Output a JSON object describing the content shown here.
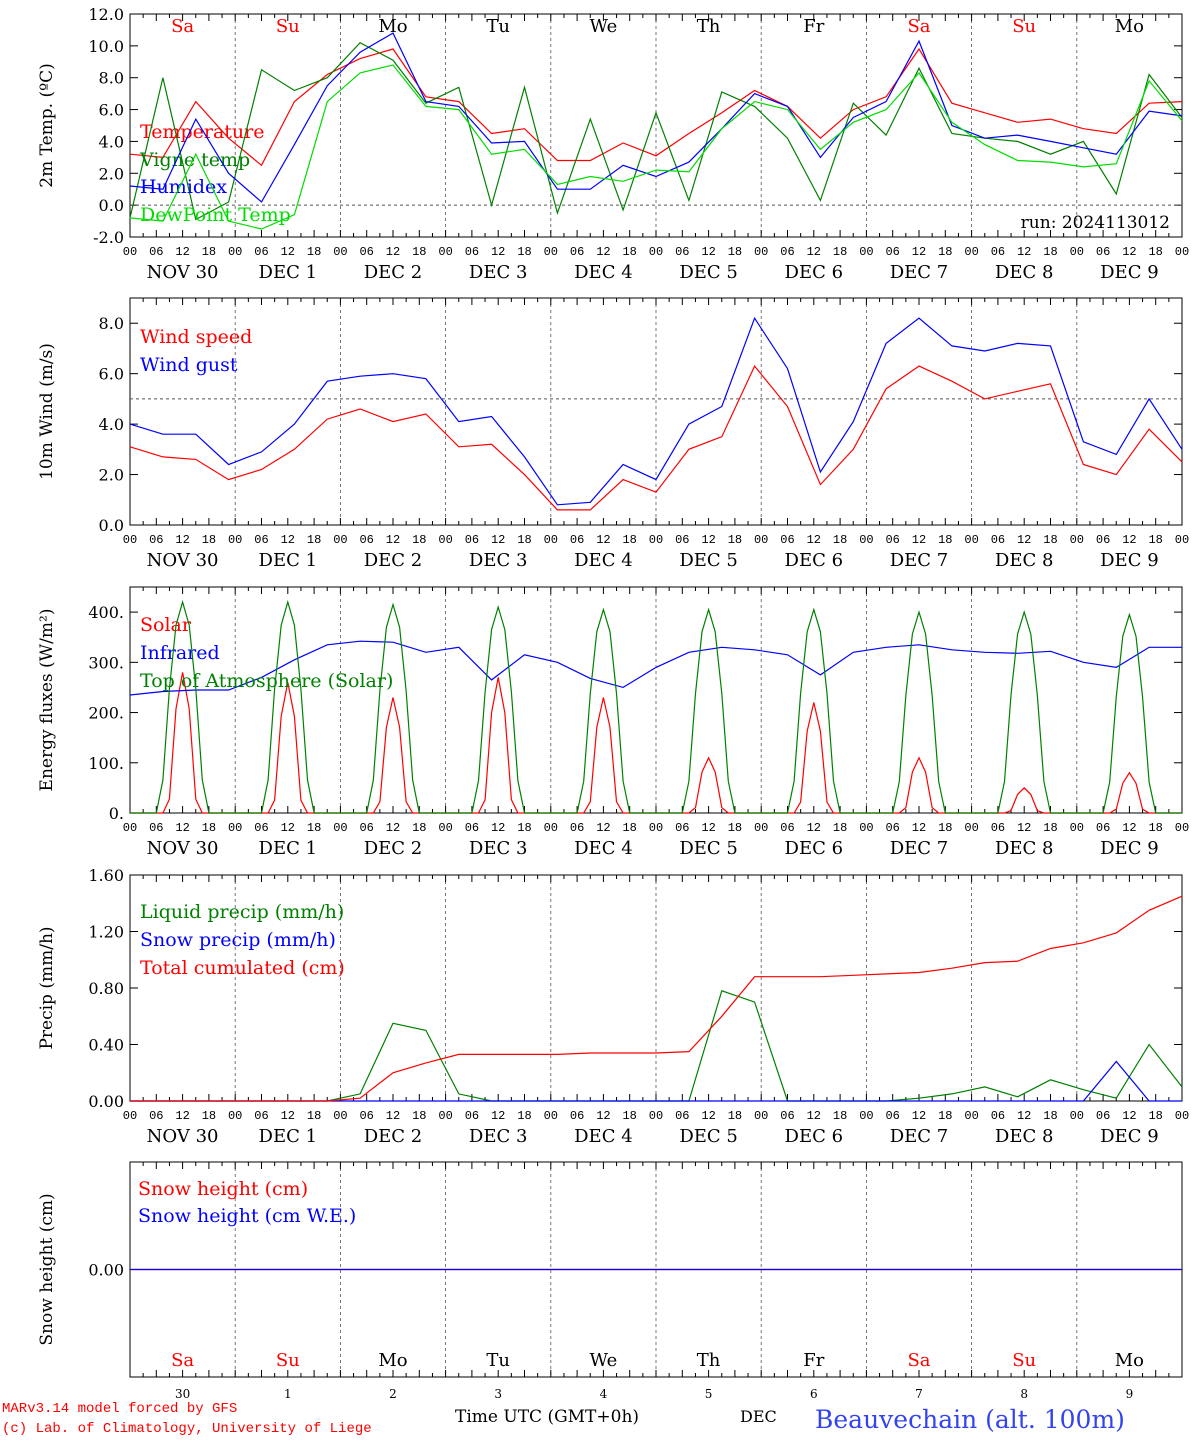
{
  "colors": {
    "red": "#ff0000",
    "green": "#008000",
    "blue": "#0000ff",
    "lime": "#00dd00",
    "black": "#000000",
    "grid": "#555555"
  },
  "days": {
    "names": [
      "Sa",
      "Su",
      "Mo",
      "Tu",
      "We",
      "Th",
      "Fr",
      "Sa",
      "Su",
      "Mo"
    ],
    "weekend_flags": [
      true,
      true,
      false,
      false,
      false,
      false,
      false,
      true,
      true,
      false
    ],
    "date_labels": [
      "NOV 30",
      "DEC  1",
      "DEC  2",
      "DEC  3",
      "DEC  4",
      "DEC  5",
      "DEC  6",
      "DEC  7",
      "DEC  8",
      "DEC  9"
    ],
    "hour_ticks": [
      "00",
      "06",
      "12",
      "18"
    ],
    "final_tick": "00",
    "day_numbers": [
      "30",
      "1",
      "2",
      "3",
      "4",
      "5",
      "6",
      "7",
      "8",
      "9"
    ]
  },
  "footer": {
    "model": "MARv3.14 model forced by GFS",
    "lab": "(c) Lab. of Climatology, University of Liege",
    "time_label": "Time UTC (GMT+0h)",
    "month": "DEC",
    "station": "Beauvechain (alt. 100m)"
  },
  "chart_data": [
    {
      "id": "temperature",
      "type": "line",
      "ylabel": "2m Temp. (ºC)",
      "ylim": [
        -2,
        12
      ],
      "yticks": [
        "-2.0",
        "0.0",
        "2.0",
        "4.0",
        "6.0",
        "8.0",
        "10.0",
        "12.0"
      ],
      "reference_line": 0,
      "annotation": "run: 2024113012",
      "x_hours": [
        0,
        6,
        12,
        18,
        24,
        30,
        36,
        42,
        48,
        54,
        60,
        66,
        72,
        78,
        84,
        90,
        96,
        102,
        108,
        114,
        120,
        126,
        132,
        138,
        144,
        150,
        156,
        162,
        168,
        174,
        180,
        186,
        192,
        198,
        204,
        210,
        216,
        222,
        228,
        234,
        240
      ],
      "series": [
        {
          "name": "Temperature",
          "color": "red",
          "values": [
            3.2,
            3.0,
            6.5,
            4.2,
            2.5,
            6.5,
            8.2,
            9.2,
            9.8,
            6.8,
            6.5,
            4.5,
            4.8,
            2.8,
            2.8,
            3.9,
            3.1,
            4.5,
            5.8,
            7.2,
            6.2,
            4.2,
            6.0,
            6.8,
            9.8,
            6.4,
            5.8,
            5.2,
            5.4,
            4.8,
            4.5,
            6.4,
            6.5
          ]
        },
        {
          "name": "Vigne temp",
          "color": "green",
          "values": [
            -0.8,
            8.0,
            -0.9,
            0.2,
            8.5,
            7.2,
            8.0,
            10.2,
            9.1,
            6.4,
            7.4,
            0.0,
            7.4,
            -0.5,
            5.4,
            -0.3,
            5.8,
            0.3,
            7.1,
            6.2,
            4.2,
            0.3,
            6.4,
            4.4,
            8.6,
            4.5,
            4.2,
            4.0,
            3.2,
            4.0,
            0.7,
            8.2,
            5.5
          ]
        },
        {
          "name": "Humidex",
          "color": "blue",
          "values": [
            1.2,
            1.0,
            5.4,
            2.0,
            0.2,
            3.8,
            7.5,
            9.6,
            10.8,
            6.5,
            6.2,
            3.9,
            4.0,
            1.0,
            1.0,
            2.5,
            1.8,
            2.7,
            4.8,
            7.0,
            6.2,
            3.0,
            5.5,
            6.5,
            10.3,
            5.0,
            4.2,
            4.4,
            4.0,
            3.6,
            3.2,
            5.9,
            5.6
          ]
        },
        {
          "name": "DewPoint Temp",
          "color": "lime",
          "values": [
            -0.8,
            -1.0,
            3.2,
            -1.0,
            -1.5,
            -0.6,
            6.5,
            8.3,
            8.8,
            6.2,
            6.0,
            3.2,
            3.5,
            1.3,
            1.8,
            1.5,
            2.2,
            2.1,
            4.8,
            6.5,
            6.0,
            3.5,
            5.2,
            6.0,
            8.3,
            5.2,
            3.8,
            2.8,
            2.7,
            2.4,
            2.6,
            7.8,
            5.3
          ]
        }
      ]
    },
    {
      "id": "wind",
      "type": "line",
      "ylabel": "10m Wind (m/s)",
      "ylim": [
        0,
        9
      ],
      "yticks": [
        "0.0",
        "2.0",
        "4.0",
        "6.0",
        "8.0"
      ],
      "reference_line": 5,
      "series": [
        {
          "name": "Wind speed",
          "color": "red",
          "values": [
            3.1,
            2.7,
            2.6,
            1.8,
            2.2,
            3.0,
            4.2,
            4.6,
            4.1,
            4.4,
            3.1,
            3.2,
            2.0,
            0.6,
            0.6,
            1.8,
            1.3,
            3.0,
            3.5,
            6.3,
            4.7,
            1.6,
            3.0,
            5.4,
            6.3,
            5.7,
            5.0,
            5.3,
            5.6,
            2.4,
            2.0,
            3.8,
            2.5
          ]
        },
        {
          "name": "Wind gust",
          "color": "blue",
          "values": [
            4.0,
            3.6,
            3.6,
            2.4,
            2.9,
            4.0,
            5.7,
            5.9,
            6.0,
            5.8,
            4.1,
            4.3,
            2.7,
            0.8,
            0.9,
            2.4,
            1.8,
            4.0,
            4.7,
            8.2,
            6.2,
            2.1,
            4.1,
            7.2,
            8.2,
            7.1,
            6.9,
            7.2,
            7.1,
            3.3,
            2.8,
            5.0,
            3.0
          ]
        }
      ]
    },
    {
      "id": "energy",
      "type": "line",
      "ylabel": "Energy fluxes (W/m²)",
      "ylim": [
        0,
        450
      ],
      "yticks": [
        "0.",
        "100.",
        "200.",
        "300.",
        "400."
      ],
      "series": [
        {
          "name": "Solar",
          "color": "red",
          "peaks": [
            280,
            260,
            230,
            270,
            230,
            110,
            220,
            110,
            50,
            80
          ]
        },
        {
          "name": "Infrared",
          "color": "blue",
          "values": [
            235,
            242,
            245,
            245,
            270,
            305,
            335,
            342,
            340,
            320,
            330,
            265,
            315,
            300,
            268,
            250,
            290,
            320,
            330,
            325,
            315,
            275,
            320,
            330,
            335,
            325,
            320,
            318,
            322,
            300,
            290,
            330,
            330
          ]
        },
        {
          "name": "Top of Atmosphere (Solar)",
          "color": "green",
          "peaks": [
            420,
            420,
            415,
            410,
            405,
            405,
            405,
            400,
            400,
            395
          ]
        }
      ]
    },
    {
      "id": "precip",
      "type": "line",
      "ylabel": "Precip (mm/h)",
      "ylim": [
        0,
        1.6
      ],
      "yticks": [
        "0.00",
        "0.40",
        "0.80",
        "1.20",
        "1.60"
      ],
      "series": [
        {
          "name": "Liquid precip (mm/h)",
          "color": "green",
          "values": [
            0,
            0,
            0,
            0,
            0,
            0,
            0,
            0.05,
            0.55,
            0.5,
            0.05,
            0,
            0,
            0,
            0,
            0,
            0,
            0,
            0.78,
            0.7,
            0,
            0,
            0,
            0,
            0.02,
            0.05,
            0.1,
            0.03,
            0.15,
            0.08,
            0.02,
            0.4,
            0.1
          ]
        },
        {
          "name": "Snow precip (mm/h)",
          "color": "blue",
          "values": [
            0,
            0,
            0,
            0,
            0,
            0,
            0,
            0,
            0,
            0,
            0,
            0,
            0,
            0,
            0,
            0,
            0,
            0,
            0,
            0,
            0,
            0,
            0,
            0,
            0,
            0,
            0,
            0,
            0,
            0,
            0.28,
            0,
            0
          ]
        },
        {
          "name": "Total cumulated (cm)",
          "color": "red",
          "values": [
            0,
            0,
            0,
            0,
            0,
            0,
            0,
            0.02,
            0.2,
            0.27,
            0.33,
            0.33,
            0.33,
            0.33,
            0.34,
            0.34,
            0.34,
            0.35,
            0.6,
            0.88,
            0.88,
            0.88,
            0.89,
            0.9,
            0.91,
            0.94,
            0.98,
            0.99,
            1.08,
            1.12,
            1.19,
            1.35,
            1.45
          ]
        }
      ]
    },
    {
      "id": "snow",
      "type": "line",
      "ylabel": "Snow height (cm)",
      "ylim": [
        -1,
        1
      ],
      "yticks": [
        "0.00"
      ],
      "series": [
        {
          "name": "Snow height (cm)",
          "color": "red",
          "values": [
            0,
            0
          ]
        },
        {
          "name": "Snow height (cm W.E.)",
          "color": "blue",
          "values": [
            0,
            0
          ]
        }
      ]
    }
  ]
}
